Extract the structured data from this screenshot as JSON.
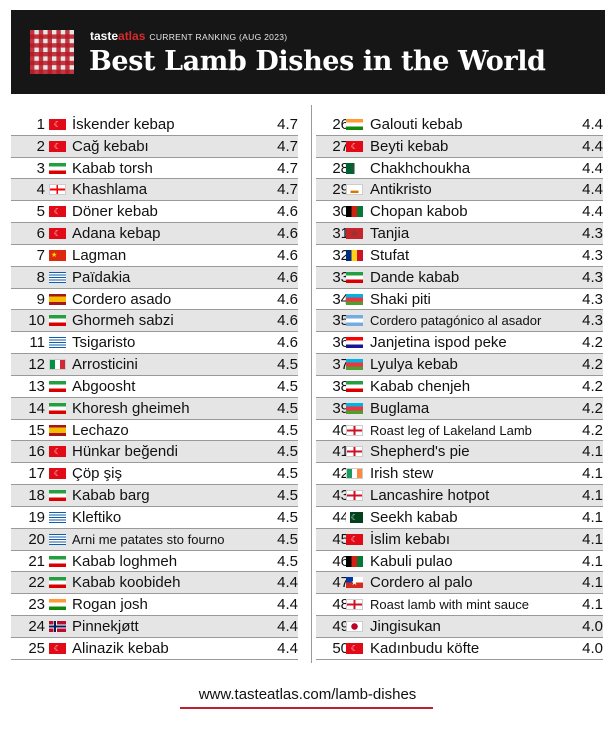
{
  "header": {
    "brand_main": "taste",
    "brand_accent": "atlas",
    "ranking": "CURRENT RANKING (AUG 2023)",
    "title": "Best Lamb Dishes in the World",
    "logo": "checkered-tablecloth-logo"
  },
  "colors": {
    "header_bg": "#161616",
    "accent": "#c01f2f",
    "alt_row": "#e5e5e5"
  },
  "left_column": [
    {
      "rank": "1",
      "flag": "tr",
      "name": "İskender kebap",
      "score": "4.7"
    },
    {
      "rank": "2",
      "flag": "tr",
      "name": "Cağ kebabı",
      "score": "4.7"
    },
    {
      "rank": "3",
      "flag": "ir",
      "name": "Kabab torsh",
      "score": "4.7"
    },
    {
      "rank": "4",
      "flag": "ge",
      "name": "Khashlama",
      "score": "4.7"
    },
    {
      "rank": "5",
      "flag": "tr",
      "name": "Döner kebab",
      "score": "4.6"
    },
    {
      "rank": "6",
      "flag": "tr",
      "name": "Adana kebap",
      "score": "4.6"
    },
    {
      "rank": "7",
      "flag": "cn",
      "name": "Lagman",
      "score": "4.6"
    },
    {
      "rank": "8",
      "flag": "gr",
      "name": "Païdakia",
      "score": "4.6"
    },
    {
      "rank": "9",
      "flag": "es",
      "name": "Cordero asado",
      "score": "4.6"
    },
    {
      "rank": "10",
      "flag": "ir",
      "name": "Ghormeh sabzi",
      "score": "4.6"
    },
    {
      "rank": "11",
      "flag": "gr",
      "name": "Tsigaristo",
      "score": "4.6"
    },
    {
      "rank": "12",
      "flag": "it",
      "name": "Arrosticini",
      "score": "4.5"
    },
    {
      "rank": "13",
      "flag": "ir",
      "name": "Abgoosht",
      "score": "4.5"
    },
    {
      "rank": "14",
      "flag": "ir",
      "name": "Khoresh gheimeh",
      "score": "4.5"
    },
    {
      "rank": "15",
      "flag": "es",
      "name": "Lechazo",
      "score": "4.5"
    },
    {
      "rank": "16",
      "flag": "tr",
      "name": "Hünkar beğendi",
      "score": "4.5"
    },
    {
      "rank": "17",
      "flag": "tr",
      "name": "Çöp şiş",
      "score": "4.5"
    },
    {
      "rank": "18",
      "flag": "ir",
      "name": "Kabab barg",
      "score": "4.5"
    },
    {
      "rank": "19",
      "flag": "gr",
      "name": "Kleftiko",
      "score": "4.5"
    },
    {
      "rank": "20",
      "flag": "gr",
      "name": "Arni me patates sto fourno",
      "score": "4.5"
    },
    {
      "rank": "21",
      "flag": "ir",
      "name": "Kabab loghmeh",
      "score": "4.5"
    },
    {
      "rank": "22",
      "flag": "ir",
      "name": "Kabab koobideh",
      "score": "4.4"
    },
    {
      "rank": "23",
      "flag": "in",
      "name": "Rogan josh",
      "score": "4.4"
    },
    {
      "rank": "24",
      "flag": "no",
      "name": "Pinnekjøtt",
      "score": "4.4"
    },
    {
      "rank": "25",
      "flag": "tr",
      "name": "Alinazik kebab",
      "score": "4.4"
    }
  ],
  "right_column": [
    {
      "rank": "26",
      "flag": "in",
      "name": "Galouti kebab",
      "score": "4.4"
    },
    {
      "rank": "27",
      "flag": "tr",
      "name": "Beyti kebab",
      "score": "4.4"
    },
    {
      "rank": "28",
      "flag": "dz",
      "name": "Chakhchoukha",
      "score": "4.4"
    },
    {
      "rank": "29",
      "flag": "cy",
      "name": "Antikristo",
      "score": "4.4"
    },
    {
      "rank": "30",
      "flag": "af",
      "name": "Chopan kabob",
      "score": "4.4"
    },
    {
      "rank": "31",
      "flag": "ma",
      "name": "Tanjia",
      "score": "4.3"
    },
    {
      "rank": "32",
      "flag": "ro",
      "name": "Stufat",
      "score": "4.3"
    },
    {
      "rank": "33",
      "flag": "ir",
      "name": "Dande kabab",
      "score": "4.3"
    },
    {
      "rank": "34",
      "flag": "az",
      "name": "Shaki piti",
      "score": "4.3"
    },
    {
      "rank": "35",
      "flag": "ar",
      "name": "Cordero patagónico al asador",
      "score": "4.3"
    },
    {
      "rank": "36",
      "flag": "hr",
      "name": "Janjetina ispod peke",
      "score": "4.2"
    },
    {
      "rank": "37",
      "flag": "az",
      "name": "Lyulya kebab",
      "score": "4.2"
    },
    {
      "rank": "38",
      "flag": "ir",
      "name": "Kabab chenjeh",
      "score": "4.2"
    },
    {
      "rank": "39",
      "flag": "az",
      "name": "Buglama",
      "score": "4.2"
    },
    {
      "rank": "40",
      "flag": "en",
      "name": "Roast leg of Lakeland Lamb",
      "score": "4.2"
    },
    {
      "rank": "41",
      "flag": "en",
      "name": "Shepherd's pie",
      "score": "4.1"
    },
    {
      "rank": "42",
      "flag": "ie",
      "name": "Irish stew",
      "score": "4.1"
    },
    {
      "rank": "43",
      "flag": "en",
      "name": "Lancashire hotpot",
      "score": "4.1"
    },
    {
      "rank": "44",
      "flag": "pk",
      "name": "Seekh kabab",
      "score": "4.1"
    },
    {
      "rank": "45",
      "flag": "tr",
      "name": "İslim kebabı",
      "score": "4.1"
    },
    {
      "rank": "46",
      "flag": "af",
      "name": "Kabuli pulao",
      "score": "4.1"
    },
    {
      "rank": "47",
      "flag": "cl",
      "name": "Cordero al palo",
      "score": "4.1"
    },
    {
      "rank": "48",
      "flag": "en",
      "name": "Roast lamb with mint sauce",
      "score": "4.1"
    },
    {
      "rank": "49",
      "flag": "jp",
      "name": "Jingisukan",
      "score": "4.0"
    },
    {
      "rank": "50",
      "flag": "tr",
      "name": "Kadınbudu köfte",
      "score": "4.0"
    }
  ],
  "footer": {
    "url": "www.tasteatlas.com/lamb-dishes"
  }
}
